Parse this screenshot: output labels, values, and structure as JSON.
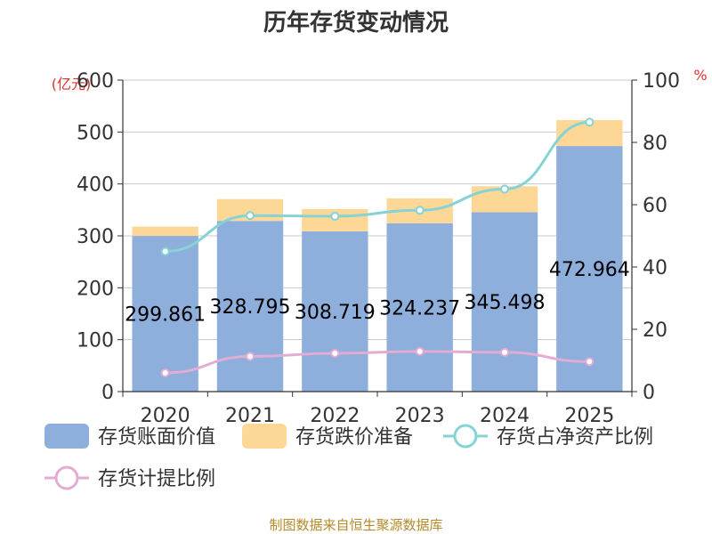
{
  "chart_data": {
    "type": "bar",
    "title": "历年存货变动情况",
    "left_axis_unit": "(亿元)",
    "right_axis_unit": "%",
    "categories": [
      "2020",
      "2021",
      "2022",
      "2023",
      "2024",
      "2025"
    ],
    "ylim_left": [
      0,
      600
    ],
    "yticks_left": [
      "0",
      "100",
      "200",
      "300",
      "400",
      "500",
      "600"
    ],
    "ylim_right": [
      0,
      100
    ],
    "yticks_right": [
      "0",
      "20",
      "40",
      "60",
      "80",
      "100"
    ],
    "stacked": true,
    "series": [
      {
        "name": "存货账面价值",
        "type": "bar",
        "axis": "left",
        "color": "#8eaedb",
        "values": [
          299.861,
          328.795,
          308.719,
          324.237,
          345.498,
          472.964
        ],
        "labels": [
          "299.861",
          "328.795",
          "308.719",
          "324.237",
          "345.498",
          "472.964"
        ]
      },
      {
        "name": "存货跌价准备",
        "type": "bar",
        "axis": "left",
        "color": "#fdd796",
        "values": [
          18,
          42,
          43,
          48,
          50,
          50
        ]
      },
      {
        "name": "存货占净资产比例",
        "type": "line",
        "axis": "right",
        "color": "#86d3d6",
        "values": [
          45,
          56.5,
          56.3,
          58.2,
          65,
          86.5
        ]
      },
      {
        "name": "存货计提比例",
        "type": "line",
        "axis": "right",
        "color": "#e3acd3",
        "values": [
          6,
          11.3,
          12.3,
          12.9,
          12.6,
          9.6
        ]
      }
    ],
    "grid": true,
    "legend_position": "bottom"
  },
  "source_text": "制图数据来自恒生聚源数据库"
}
